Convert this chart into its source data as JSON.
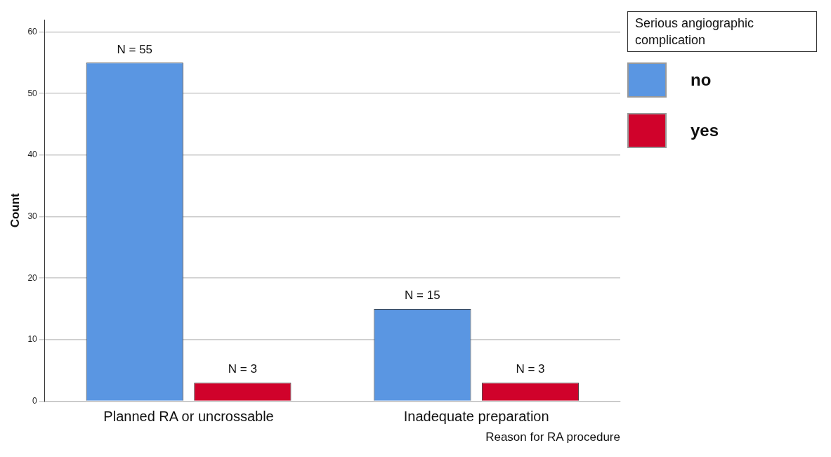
{
  "chart_data": {
    "type": "bar",
    "xlabel": "Reason for RA procedure",
    "ylabel": "Count",
    "legend_title": "Serious angiographic complication",
    "categories": [
      "Planned RA or uncrossable",
      "Inadequate preparation"
    ],
    "series": [
      {
        "name": "no",
        "color": "#5a96e2",
        "values": [
          55,
          15
        ],
        "value_labels": [
          "N = 55",
          "N = 15"
        ]
      },
      {
        "name": "yes",
        "color": "#d0022b",
        "values": [
          3,
          3
        ],
        "value_labels": [
          "N = 3",
          "N = 3"
        ]
      }
    ],
    "ylim": [
      0,
      62
    ],
    "yticks": [
      0,
      10,
      20,
      30,
      40,
      50,
      60
    ],
    "grid": "y",
    "legend": "top right"
  }
}
